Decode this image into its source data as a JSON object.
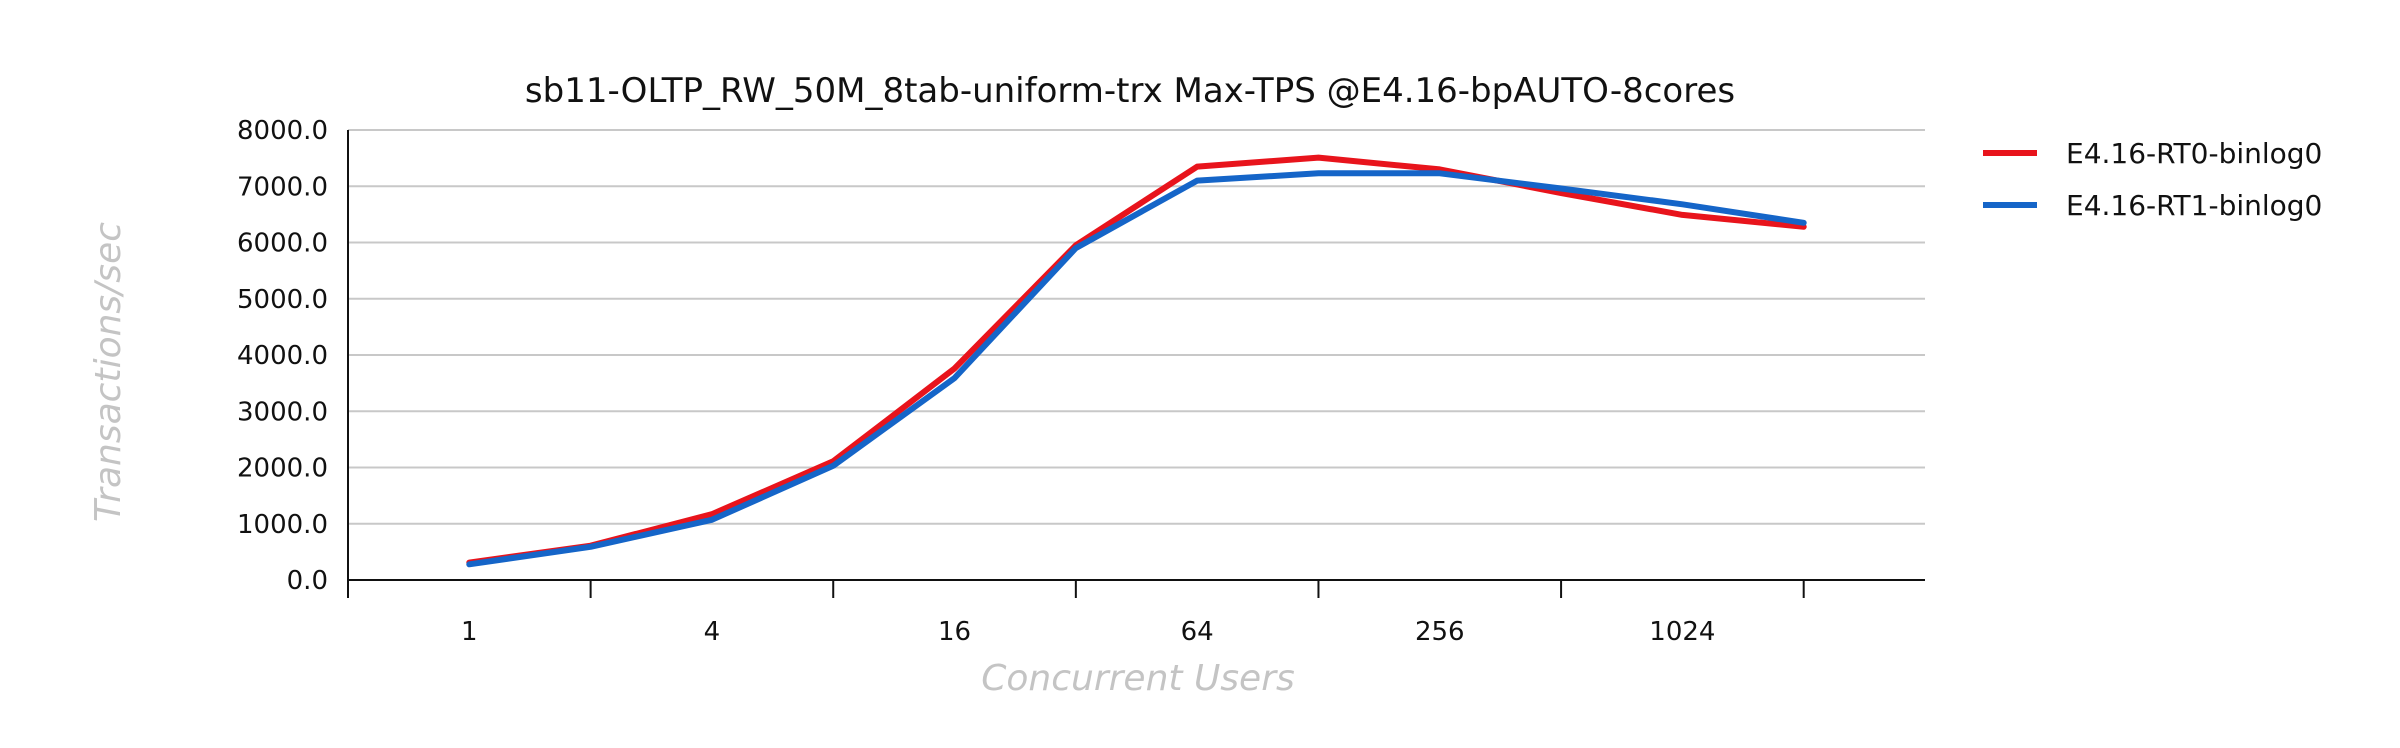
{
  "chart_data": {
    "type": "line",
    "title": "sb11-OLTP_RW_50M_8tab-uniform-trx Max-TPS @E4.16-bpAUTO-8cores",
    "xlabel": "Concurrent Users",
    "ylabel": "Transactions/sec",
    "x": [
      1,
      2,
      4,
      8,
      16,
      32,
      64,
      128,
      256,
      512,
      1024,
      2048
    ],
    "x_tick_labels": [
      "1",
      "4",
      "16",
      "64",
      "256",
      "1024"
    ],
    "x_scale": "log2",
    "ylim": [
      0,
      8000
    ],
    "y_ticks": [
      "0.0",
      "1000.0",
      "2000.0",
      "3000.0",
      "4000.0",
      "5000.0",
      "6000.0",
      "7000.0",
      "8000.0"
    ],
    "grid": "horizontal",
    "legend_position": "right",
    "series": [
      {
        "name": "E4.16-RT0-binlog0",
        "color": "#e8141c",
        "values": [
          310,
          610,
          1170,
          2110,
          3760,
          5950,
          7350,
          7510,
          7300,
          6880,
          6490,
          6280
        ]
      },
      {
        "name": "E4.16-RT1-binlog0",
        "color": "#1565c8",
        "values": [
          280,
          590,
          1070,
          2030,
          3590,
          5900,
          7100,
          7230,
          7230,
          6960,
          6680,
          6350
        ]
      }
    ]
  }
}
